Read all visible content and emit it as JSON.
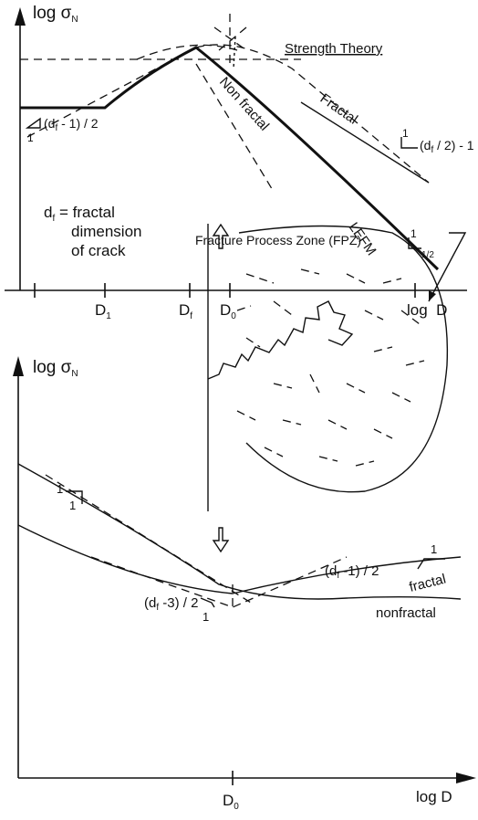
{
  "top_panel": {
    "y_axis_label": {
      "main": "log σ",
      "sub": "N"
    },
    "strength_theory": "Strength Theory",
    "fractal": "Fractal",
    "non_fractal": "Non fractal",
    "lefm": "LEFM",
    "slope_left": {
      "one": "1",
      "pre": "(d",
      "sub": "f",
      "post": " - 1) / 2"
    },
    "slope_fractal": {
      "one": "1",
      "pre": "(d",
      "sub": "f",
      "post": " / 2) - 1"
    },
    "slope_lefm": {
      "one": "1",
      "half": "1/2"
    },
    "df_note": {
      "pre": "d",
      "sub": "f",
      "post": " = fractal",
      "line2": "dimension",
      "line3": "of crack"
    },
    "x_ticks": [
      {
        "main": "D",
        "sub": "1"
      },
      {
        "main": "D",
        "sub": "f"
      },
      {
        "main": "D",
        "sub": "0"
      }
    ],
    "x_axis_label": "log  D"
  },
  "bottom_panel": {
    "fpz_label": "Fracture Process Zone (FPZ)",
    "y_axis_label": {
      "main": "log σ",
      "sub": "N"
    },
    "slope_steep": {
      "top": "1",
      "bottom": "1"
    },
    "slope_fractal": {
      "one": "1",
      "pre": "(d",
      "sub": "f",
      "post": " -1) / 2"
    },
    "fractal": "fractal",
    "nonfractal": "nonfractal",
    "slope_min": {
      "one": "1",
      "pre": "(d",
      "sub": "f",
      "post": " -3) / 2"
    },
    "x_tick": {
      "main": "D",
      "sub": "0"
    },
    "x_axis_label": "log D"
  }
}
